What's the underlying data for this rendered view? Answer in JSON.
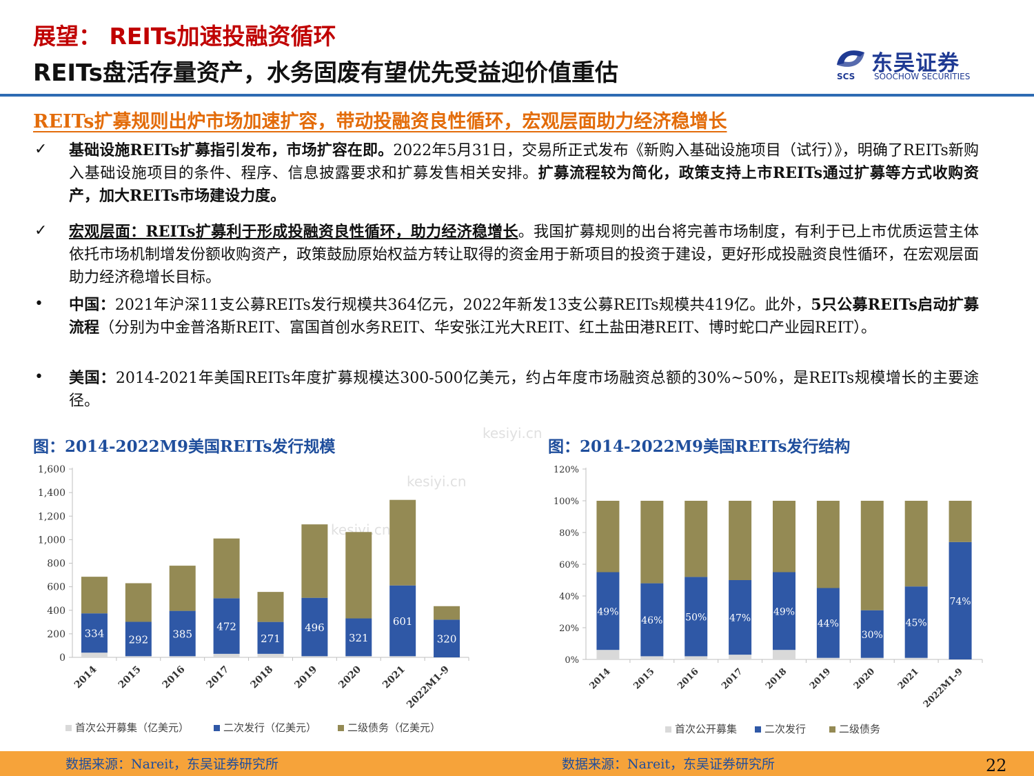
{
  "header": {
    "title_line1": "展望： REITs加速投融资循环",
    "title_line2": "REITs盘活存量资产，水务固废有望优先受益迎价值重估",
    "logo_name": "东吴证券",
    "logo_en": "SOOCHOW SECURITIES",
    "logo_abbr": "SCS"
  },
  "subhead": "REITs扩募规则出炉市场加速扩容，带动投融资良性循环，宏观层面助力经济稳增长",
  "points": [
    {
      "marker": "✓",
      "lead": "基础设施REITs扩募指引发布，市场扩容在即。",
      "body": "2022年5月31日，交易所正式发布《新购入基础设施项目（试行）》，明确了REITs新购入基础设施项目的条件、程序、信息披露要求和扩募发售相关安排。",
      "tail": "扩募流程较为简化，政策支持上市REITs通过扩募等方式收购资产，加大REITs市场建设力度。"
    },
    {
      "marker": "✓",
      "lead": "宏观层面：REITs扩募利于形成投融资良性循环，助力经济稳增长",
      "body": "。我国扩募规则的出台将完善市场制度，有利于已上市优质运营主体依托市场机制增发份额收购资产，政策鼓励原始权益方转让取得的资金用于新项目的投资于建设，更好形成投融资良性循环，在宏观层面助力经济稳增长目标。"
    },
    {
      "marker": "•",
      "lead": "中国：",
      "body": "2021年沪深11支公募REITs发行规模共364亿元，2022年新发13支公募REITs规模共419亿。此外，",
      "bold2": "5只公募REITs启动扩募流程",
      "tail": "（分别为中金普洛斯REIT、富国首创水务REIT、华安张江光大REIT、红土盐田港REIT、博时蛇口产业园REIT）。"
    },
    {
      "marker": "•",
      "lead": "美国：",
      "body": "2014-2021年美国REITs年度扩募规模达300-500亿美元，约占年度市场融资总额的30%~50%，是REITs规模增长的主要途径。"
    }
  ],
  "chart1_title": "图：2014-2022M9美国REITs发行规模",
  "chart2_title": "图：2014-2022M9美国REITs发行结构",
  "source1": "数据来源：Nareit，东吴证券研究所",
  "source2": "数据来源：Nareit，东吴证券研究所",
  "page_number": "22",
  "watermark": "kesiyi.cn",
  "colors": {
    "ipo": "#d9d9d9",
    "secondary": "#2f58a6",
    "debt": "#948a54",
    "accent_red": "#c00000",
    "accent_orange": "#e36c0a",
    "blue_title": "#1f4e9c",
    "footer": "#f6a33a"
  },
  "chart_data": [
    {
      "type": "bar",
      "stacked": true,
      "categories": [
        "2014",
        "2015",
        "2016",
        "2017",
        "2018",
        "2019",
        "2020",
        "2021",
        "2022M1-9"
      ],
      "series": [
        {
          "name": "首次公开募集（亿美元）",
          "values": [
            40,
            10,
            10,
            30,
            30,
            10,
            10,
            10,
            0
          ]
        },
        {
          "name": "二次发行（亿美元）",
          "values": [
            334,
            292,
            385,
            472,
            271,
            496,
            321,
            601,
            320
          ]
        },
        {
          "name": "二级债务（亿美元）",
          "values": [
            311,
            328,
            384,
            508,
            255,
            624,
            734,
            727,
            115
          ]
        }
      ],
      "data_labels": [
        "334",
        "292",
        "385",
        "472",
        "271",
        "496",
        "321",
        "601",
        "320"
      ],
      "yticks": [
        "0",
        "200",
        "400",
        "600",
        "800",
        "1,000",
        "1,200",
        "1,400",
        "1,600"
      ],
      "ylim": [
        0,
        1600
      ],
      "legend": "bottom"
    },
    {
      "type": "bar",
      "stacked": true,
      "categories": [
        "2014",
        "2015",
        "2016",
        "2017",
        "2018",
        "2019",
        "2020",
        "2021",
        "2022M1-9"
      ],
      "series": [
        {
          "name": "首次公开募集",
          "values": [
            6,
            2,
            2,
            3,
            6,
            1,
            1,
            1,
            0
          ]
        },
        {
          "name": "二次发行",
          "values": [
            49,
            46,
            50,
            47,
            49,
            44,
            30,
            45,
            74
          ]
        },
        {
          "name": "二级债务",
          "values": [
            45,
            52,
            48,
            50,
            45,
            55,
            69,
            54,
            26
          ]
        }
      ],
      "data_labels": [
        "49%",
        "46%",
        "50%",
        "47%",
        "49%",
        "44%",
        "30%",
        "45%",
        "74%"
      ],
      "yticks": [
        "0%",
        "20%",
        "40%",
        "60%",
        "80%",
        "100%",
        "120%"
      ],
      "ylim": [
        0,
        120
      ],
      "legend": "bottom"
    }
  ]
}
